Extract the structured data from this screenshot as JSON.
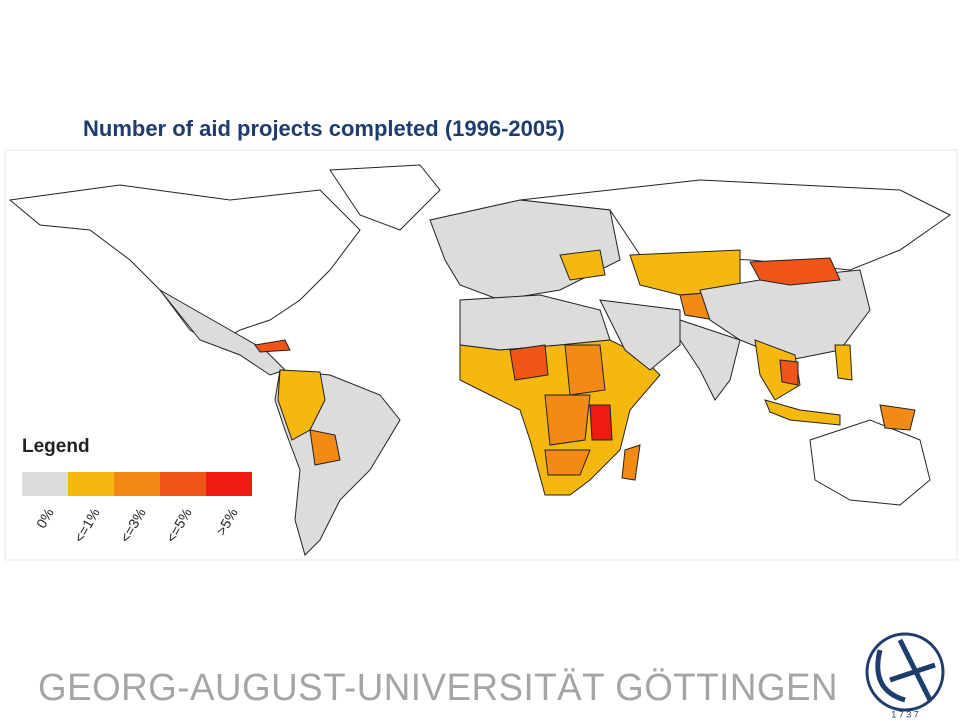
{
  "title": "Number of aid projects completed (1996-2005)",
  "legend": {
    "title": "Legend",
    "items": [
      {
        "label": "0%",
        "color": "#dcdcdc"
      },
      {
        "label": "<=1%",
        "color": "#f5b80f"
      },
      {
        "label": "<=3%",
        "color": "#f28a14"
      },
      {
        "label": "<=5%",
        "color": "#ef5418"
      },
      {
        "label": ">5%",
        "color": "#ee1c10"
      }
    ]
  },
  "footer": {
    "university": "GEORG-AUGUST-UNIVERSITÄT GÖTTINGEN",
    "logo_year": "1 7 3 7"
  }
}
